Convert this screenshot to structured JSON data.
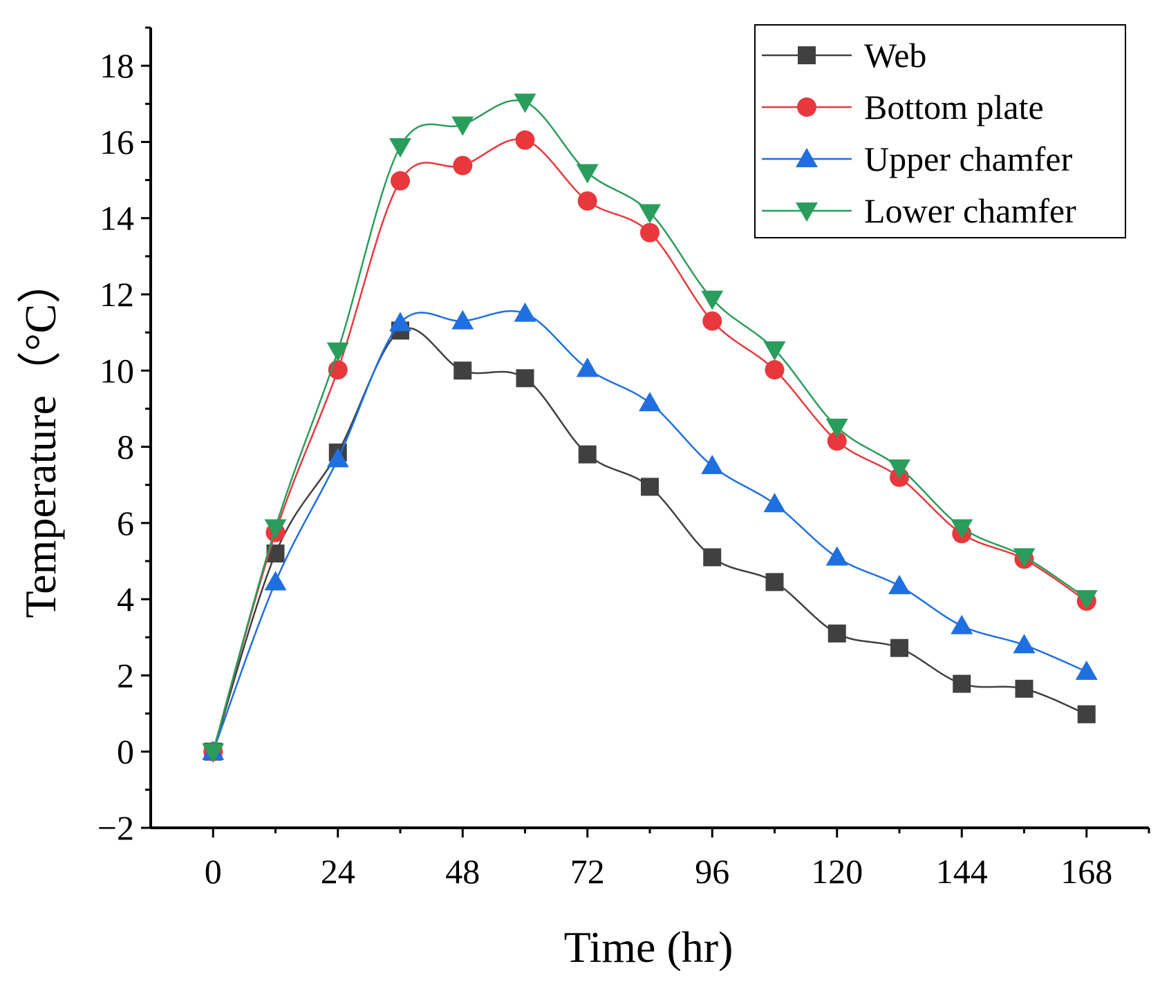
{
  "chart_data": {
    "type": "line",
    "xlabel": "Time (hr)",
    "ylabel": "Temperature（°C）",
    "xlim": [
      -12,
      180
    ],
    "ylim": [
      -2,
      19
    ],
    "xticks": [
      0,
      24,
      48,
      72,
      96,
      120,
      144,
      168
    ],
    "yticks": [
      -2,
      0,
      2,
      4,
      6,
      8,
      10,
      12,
      14,
      16,
      18
    ],
    "ytick_labels": [
      "−2",
      "0",
      "2",
      "4",
      "6",
      "8",
      "10",
      "12",
      "14",
      "16",
      "18"
    ],
    "legend_position": "top-right",
    "grid": false,
    "x": [
      0,
      12,
      24,
      36,
      48,
      60,
      72,
      84,
      96,
      108,
      120,
      132,
      144,
      156,
      168
    ],
    "series": [
      {
        "name": "Web",
        "color": "#404040",
        "marker": "square",
        "values": [
          0.0,
          5.2,
          7.85,
          11.05,
          10.0,
          9.8,
          7.8,
          6.95,
          5.1,
          4.45,
          3.1,
          2.72,
          1.78,
          1.65,
          0.98
        ]
      },
      {
        "name": "Bottom plate",
        "color": "#e8383d",
        "marker": "circle",
        "values": [
          0.0,
          5.75,
          10.02,
          14.98,
          15.38,
          16.05,
          14.45,
          13.62,
          11.3,
          10.02,
          8.15,
          7.2,
          5.72,
          5.05,
          3.95
        ]
      },
      {
        "name": "Upper chamfer",
        "color": "#1f6fe0",
        "marker": "triangle-up",
        "values": [
          0.0,
          4.45,
          7.68,
          11.25,
          11.3,
          11.5,
          10.05,
          9.15,
          7.5,
          6.5,
          5.1,
          4.35,
          3.3,
          2.8,
          2.1
        ]
      },
      {
        "name": "Lower chamfer",
        "color": "#2a9d5c",
        "marker": "triangle-down",
        "values": [
          0.0,
          5.88,
          10.52,
          15.88,
          16.45,
          17.05,
          15.2,
          14.15,
          11.88,
          10.55,
          8.52,
          7.45,
          5.88,
          5.12,
          4.02
        ]
      }
    ]
  }
}
